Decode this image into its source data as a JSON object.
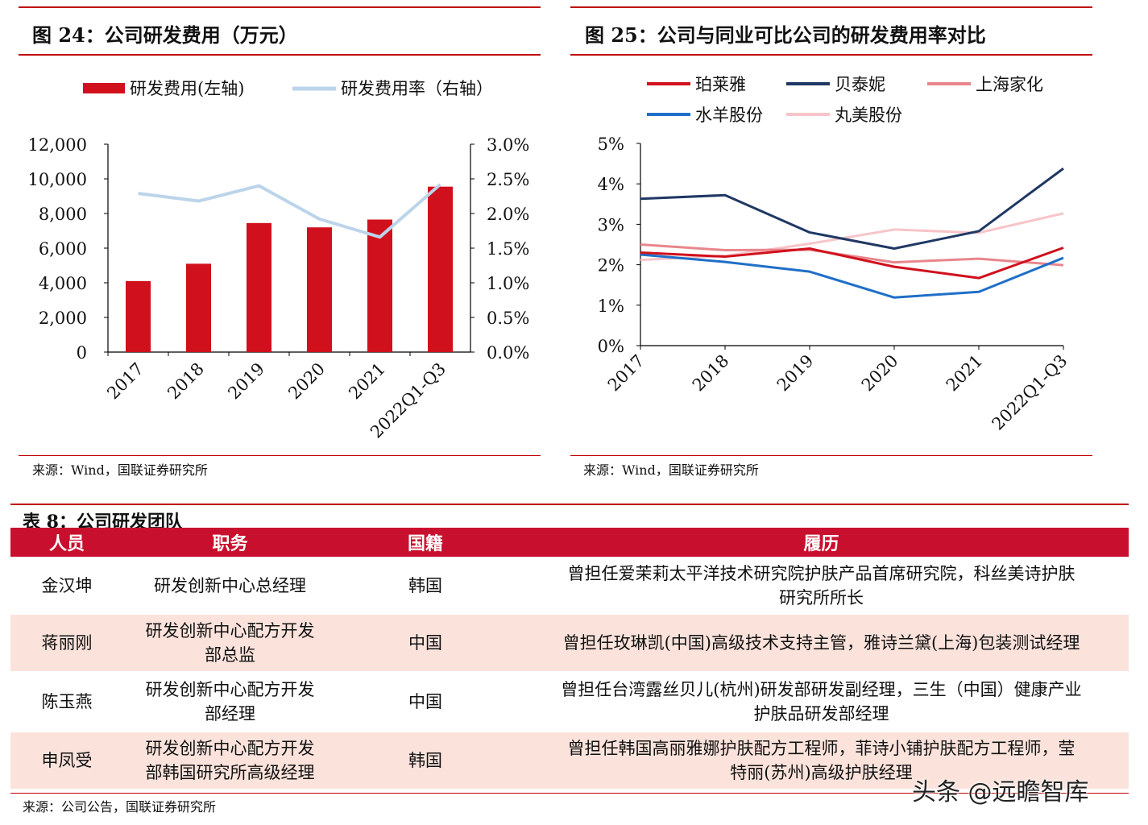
{
  "fig24": {
    "title": "图 24：公司研发费用（万元）",
    "source": "来源：Wind，国联证券研究所",
    "legend_bar": "研发费用(左轴)",
    "legend_line": "研发费用率（右轴）",
    "colors": {
      "bar": "#d0101c",
      "line": "#bcd4ea"
    }
  },
  "fig25": {
    "title": "图 25：公司与同业可比公司的研发费用率对比",
    "source": "来源：Wind，国联证券研究所"
  },
  "chart_data": [
    {
      "type": "bar",
      "categories": [
        "2017",
        "2018",
        "2019",
        "2020",
        "2021",
        "2022Q1-Q3"
      ],
      "series": [
        {
          "name": "研发费用(左轴)",
          "type": "bar",
          "axis": "left",
          "values": [
            4100,
            5100,
            7450,
            7200,
            7650,
            9550
          ]
        },
        {
          "name": "研发费用率（右轴）",
          "type": "line",
          "axis": "right",
          "values": [
            0.0229,
            0.0218,
            0.024,
            0.0192,
            0.0166,
            0.0242
          ]
        }
      ],
      "yleft": {
        "min": 0,
        "max": 12000,
        "ticks": [
          "0",
          "2,000",
          "4,000",
          "6,000",
          "8,000",
          "10,000",
          "12,000"
        ]
      },
      "yright": {
        "min": 0,
        "max": 0.03,
        "ticks": [
          "0.0%",
          "0.5%",
          "1.0%",
          "1.5%",
          "2.0%",
          "2.5%",
          "3.0%"
        ]
      },
      "legend": "top"
    },
    {
      "type": "line",
      "categories": [
        "2017",
        "2018",
        "2019",
        "2020",
        "2021",
        "2022Q1-Q3"
      ],
      "series": [
        {
          "name": "珀莱雅",
          "color": "#d0101c",
          "values": [
            0.023,
            0.022,
            0.024,
            0.0195,
            0.0167,
            0.0242
          ]
        },
        {
          "name": "贝泰妮",
          "color": "#1f3864",
          "values": [
            0.0363,
            0.0372,
            0.028,
            0.024,
            0.0283,
            0.0438
          ]
        },
        {
          "name": "上海家化",
          "color": "#e8868c",
          "values": [
            0.025,
            0.0236,
            0.0237,
            0.0206,
            0.0215,
            0.0199
          ]
        },
        {
          "name": "水羊股份",
          "color": "#1f6fc8",
          "values": [
            0.0225,
            0.0207,
            0.0183,
            0.0119,
            0.0133,
            0.0217
          ]
        },
        {
          "name": "丸美股份",
          "color": "#f7c4c9",
          "values": [
            0.0212,
            0.0222,
            0.0252,
            0.0287,
            0.0279,
            0.0327
          ]
        }
      ],
      "ylim": [
        0,
        0.05
      ],
      "yticks": [
        "0%",
        "1%",
        "2%",
        "3%",
        "4%",
        "5%"
      ],
      "legend": "top"
    }
  ],
  "table8": {
    "title": "表 8：公司研发团队",
    "headers": [
      "人员",
      "职务",
      "国籍",
      "履历"
    ],
    "rows": [
      {
        "name": "金汉坤",
        "role": [
          "研发创新中心总经理"
        ],
        "nation": "韩国",
        "resume": [
          "曾担任爱茉莉太平洋技术研究院护肤产品首席研究院，科丝美诗护肤",
          "研究所所长"
        ]
      },
      {
        "name": "蒋丽刚",
        "role": [
          "研发创新中心配方开发",
          "部总监"
        ],
        "nation": "中国",
        "resume": [
          "曾担任玫琳凯(中国)高级技术支持主管，雅诗兰黛(上海)包装测试经理"
        ]
      },
      {
        "name": "陈玉燕",
        "role": [
          "研发创新中心配方开发",
          "部经理"
        ],
        "nation": "中国",
        "resume": [
          "曾担任台湾露丝贝儿(杭州)研发部研发副经理，三生（中国）健康产业",
          "护肤品研发部经理"
        ]
      },
      {
        "name": "申凤受",
        "role": [
          "研发创新中心配方开发",
          "部韩国研究所高级经理"
        ],
        "nation": "韩国",
        "resume": [
          "曾担任韩国高丽雅娜护肤配方工程师，菲诗小铺护肤配方工程师，莹",
          "特丽(苏州)高级护肤经理"
        ]
      }
    ],
    "source": "来源：公司公告，国联证券研究所"
  },
  "watermark": "头条 @远瞻智库"
}
